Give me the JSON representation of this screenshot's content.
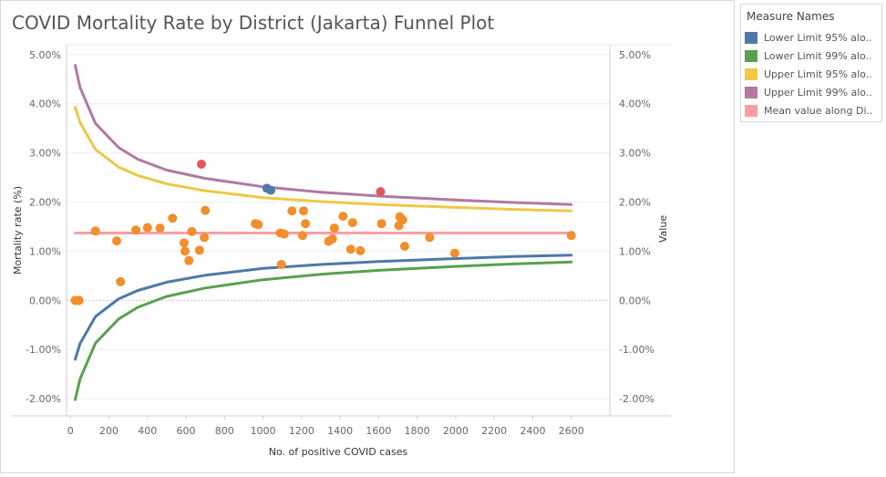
{
  "title": "COVID Mortality Rate by District (Jakarta) Funnel Plot",
  "legend": {
    "title": "Measure Names",
    "items": [
      {
        "label": "Lower Limit 95% alo..",
        "color": "#4e79a7"
      },
      {
        "label": "Lower Limit 99% alo..",
        "color": "#59a14f"
      },
      {
        "label": "Upper Limit 95% alo..",
        "color": "#edc948"
      },
      {
        "label": "Upper Limit  99% alo..",
        "color": "#b07aa1"
      },
      {
        "label": "Mean value along Di..",
        "color": "#ff9da7"
      }
    ]
  },
  "chart_data": {
    "type": "scatter",
    "xlabel": "No. of positive COVID cases",
    "ylabel": "Mortality rate (%)",
    "ylabel_right": "Value",
    "xlim": [
      -20,
      2800
    ],
    "ylim": [
      -2.35,
      5.2
    ],
    "x_ticks": [
      "0",
      "200",
      "400",
      "600",
      "800",
      "1000",
      "1200",
      "1400",
      "1600",
      "1800",
      "2000",
      "2200",
      "2400",
      "2600"
    ],
    "x_tick_values": [
      0,
      200,
      400,
      600,
      800,
      1000,
      1200,
      1400,
      1600,
      1800,
      2000,
      2200,
      2400,
      2600
    ],
    "y_ticks": [
      "-2.00%",
      "-1.00%",
      "0.00%",
      "1.00%",
      "2.00%",
      "3.00%",
      "4.00%",
      "5.00%"
    ],
    "y_tick_values": [
      -2,
      -1,
      0,
      1,
      2,
      3,
      4,
      5
    ],
    "grid": true,
    "legend_position": "right",
    "lines": [
      {
        "name": "Lower Limit 95% alo..",
        "color": "#4e79a7",
        "x": [
          25,
          50,
          130,
          250,
          350,
          500,
          700,
          1000,
          1300,
          1600,
          2000,
          2300,
          2600
        ],
        "y": [
          -1.2,
          -0.88,
          -0.33,
          0.03,
          0.2,
          0.37,
          0.51,
          0.65,
          0.73,
          0.79,
          0.85,
          0.89,
          0.92
        ]
      },
      {
        "name": "Lower Limit 99% alo..",
        "color": "#59a14f",
        "x": [
          25,
          50,
          130,
          250,
          350,
          500,
          700,
          1000,
          1300,
          1600,
          2000,
          2300,
          2600
        ],
        "y": [
          -2.02,
          -1.6,
          -0.87,
          -0.38,
          -0.14,
          0.08,
          0.25,
          0.42,
          0.53,
          0.61,
          0.69,
          0.74,
          0.78
        ]
      },
      {
        "name": "Upper Limit 95% alo..",
        "color": "#edc948",
        "x": [
          25,
          50,
          130,
          250,
          350,
          500,
          700,
          1000,
          1300,
          1600,
          2000,
          2300,
          2600
        ],
        "y": [
          3.93,
          3.62,
          3.07,
          2.71,
          2.54,
          2.37,
          2.23,
          2.09,
          2.01,
          1.95,
          1.89,
          1.85,
          1.82
        ]
      },
      {
        "name": "Upper Limit  99% alo..",
        "color": "#b07aa1",
        "x": [
          25,
          50,
          130,
          250,
          350,
          500,
          700,
          1000,
          1300,
          1600,
          2000,
          2300,
          2600
        ],
        "y": [
          4.78,
          4.33,
          3.6,
          3.11,
          2.87,
          2.65,
          2.48,
          2.31,
          2.2,
          2.12,
          2.04,
          1.99,
          1.95
        ]
      },
      {
        "name": "Mean value along Di..",
        "color": "#ff9da7",
        "x": [
          25,
          2600
        ],
        "y": [
          1.37,
          1.37
        ]
      }
    ],
    "points": [
      {
        "x": 25,
        "y": 0.0,
        "color": "#f28e2b"
      },
      {
        "x": 45,
        "y": 0.0,
        "color": "#f28e2b"
      },
      {
        "x": 130,
        "y": 1.41,
        "color": "#f28e2b"
      },
      {
        "x": 240,
        "y": 1.21,
        "color": "#f28e2b"
      },
      {
        "x": 260,
        "y": 0.38,
        "color": "#f28e2b"
      },
      {
        "x": 340,
        "y": 1.43,
        "color": "#f28e2b"
      },
      {
        "x": 400,
        "y": 1.48,
        "color": "#f28e2b"
      },
      {
        "x": 465,
        "y": 1.47,
        "color": "#f28e2b"
      },
      {
        "x": 530,
        "y": 1.67,
        "color": "#f28e2b"
      },
      {
        "x": 590,
        "y": 1.17,
        "color": "#f28e2b"
      },
      {
        "x": 595,
        "y": 1.0,
        "color": "#f28e2b"
      },
      {
        "x": 615,
        "y": 0.81,
        "color": "#f28e2b"
      },
      {
        "x": 630,
        "y": 1.4,
        "color": "#f28e2b"
      },
      {
        "x": 670,
        "y": 1.02,
        "color": "#f28e2b"
      },
      {
        "x": 680,
        "y": 2.77,
        "color": "#e15759"
      },
      {
        "x": 695,
        "y": 1.28,
        "color": "#f28e2b"
      },
      {
        "x": 700,
        "y": 1.83,
        "color": "#f28e2b"
      },
      {
        "x": 960,
        "y": 1.56,
        "color": "#f28e2b"
      },
      {
        "x": 975,
        "y": 1.54,
        "color": "#f28e2b"
      },
      {
        "x": 1020,
        "y": 2.28,
        "color": "#4e79a7"
      },
      {
        "x": 1040,
        "y": 2.24,
        "color": "#4e79a7"
      },
      {
        "x": 1090,
        "y": 1.37,
        "color": "#f28e2b"
      },
      {
        "x": 1095,
        "y": 0.73,
        "color": "#f28e2b"
      },
      {
        "x": 1110,
        "y": 1.35,
        "color": "#f28e2b"
      },
      {
        "x": 1150,
        "y": 1.82,
        "color": "#f28e2b"
      },
      {
        "x": 1205,
        "y": 1.32,
        "color": "#f28e2b"
      },
      {
        "x": 1210,
        "y": 1.82,
        "color": "#f28e2b"
      },
      {
        "x": 1220,
        "y": 1.56,
        "color": "#f28e2b"
      },
      {
        "x": 1340,
        "y": 1.2,
        "color": "#f28e2b"
      },
      {
        "x": 1360,
        "y": 1.25,
        "color": "#f28e2b"
      },
      {
        "x": 1370,
        "y": 1.47,
        "color": "#f28e2b"
      },
      {
        "x": 1415,
        "y": 1.71,
        "color": "#f28e2b"
      },
      {
        "x": 1455,
        "y": 1.04,
        "color": "#f28e2b"
      },
      {
        "x": 1465,
        "y": 1.58,
        "color": "#f28e2b"
      },
      {
        "x": 1505,
        "y": 1.01,
        "color": "#f28e2b"
      },
      {
        "x": 1610,
        "y": 2.21,
        "color": "#e15759"
      },
      {
        "x": 1615,
        "y": 1.56,
        "color": "#f28e2b"
      },
      {
        "x": 1705,
        "y": 1.52,
        "color": "#f28e2b"
      },
      {
        "x": 1710,
        "y": 1.7,
        "color": "#f28e2b"
      },
      {
        "x": 1725,
        "y": 1.64,
        "color": "#f28e2b"
      },
      {
        "x": 1735,
        "y": 1.1,
        "color": "#f28e2b"
      },
      {
        "x": 1865,
        "y": 1.28,
        "color": "#f28e2b"
      },
      {
        "x": 1995,
        "y": 0.96,
        "color": "#f28e2b"
      },
      {
        "x": 2600,
        "y": 1.32,
        "color": "#f28e2b"
      }
    ]
  }
}
